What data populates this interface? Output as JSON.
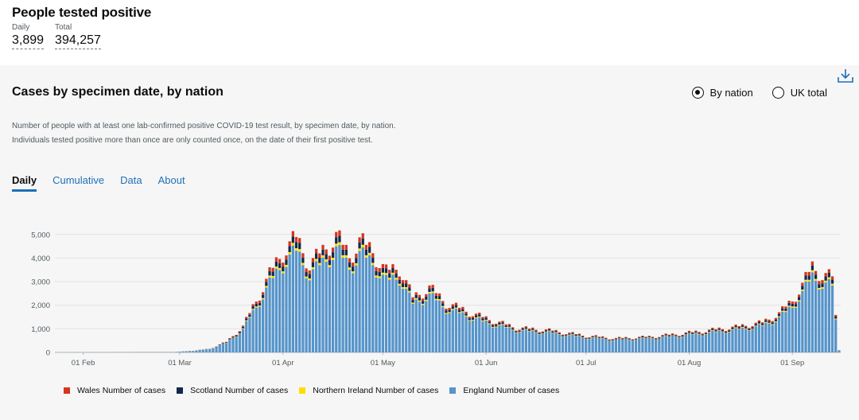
{
  "summary": {
    "title": "People tested positive",
    "daily_label": "Daily",
    "daily_value": "3,899",
    "total_label": "Total",
    "total_value": "394,257"
  },
  "card": {
    "title": "Cases by specimen date, by nation",
    "download_icon": "download-icon",
    "radio_by_nation": "By nation",
    "radio_uk_total": "UK total",
    "description": "Number of people with at least one lab-confirmed positive COVID-19 test result, by specimen date, by nation. Individuals tested positive more than once are only counted once, on the date of their first positive test.",
    "tabs": [
      "Daily",
      "Cumulative",
      "Data",
      "About"
    ]
  },
  "chart_data": {
    "type": "bar",
    "stacked": true,
    "x_start": "2020-01-24",
    "x_ticks": [
      {
        "date": "2020-02-01",
        "label": "01 Feb"
      },
      {
        "date": "2020-03-01",
        "label": "01 Mar"
      },
      {
        "date": "2020-04-01",
        "label": "01 Apr"
      },
      {
        "date": "2020-05-01",
        "label": "01 May"
      },
      {
        "date": "2020-06-01",
        "label": "01 Jun"
      },
      {
        "date": "2020-07-01",
        "label": "01 Jul"
      },
      {
        "date": "2020-08-01",
        "label": "01 Aug"
      },
      {
        "date": "2020-09-01",
        "label": "01 Sep"
      }
    ],
    "y_ticks": [
      {
        "value": 0,
        "label": "0"
      },
      {
        "value": 1000,
        "label": "1,000"
      },
      {
        "value": 2000,
        "label": "2,000"
      },
      {
        "value": 3000,
        "label": "3,000"
      },
      {
        "value": 4000,
        "label": "4,000"
      },
      {
        "value": 5000,
        "label": "5,000"
      }
    ],
    "ylim": [
      0,
      5600
    ],
    "grid": true,
    "legend_position": "bottom",
    "england_anchors": [
      [
        "2020-01-24",
        2
      ],
      [
        "2020-02-28",
        15
      ],
      [
        "2020-03-05",
        60
      ],
      [
        "2020-03-10",
        140
      ],
      [
        "2020-03-15",
        400
      ],
      [
        "2020-03-20",
        1000
      ],
      [
        "2020-03-24",
        2000
      ],
      [
        "2020-03-28",
        3000
      ],
      [
        "2020-04-01",
        3900
      ],
      [
        "2020-04-05",
        4400
      ],
      [
        "2020-04-09",
        3400
      ],
      [
        "2020-04-13",
        3900
      ],
      [
        "2020-04-17",
        4500
      ],
      [
        "2020-04-21",
        3700
      ],
      [
        "2020-04-24",
        4300
      ],
      [
        "2020-04-28",
        3900
      ],
      [
        "2020-05-02",
        3100
      ],
      [
        "2020-05-06",
        3300
      ],
      [
        "2020-05-10",
        2100
      ],
      [
        "2020-05-15",
        2500
      ],
      [
        "2020-05-20",
        1900
      ],
      [
        "2020-05-25",
        1650
      ],
      [
        "2020-05-31",
        1350
      ],
      [
        "2020-06-10",
        950
      ],
      [
        "2020-06-20",
        850
      ],
      [
        "2020-07-01",
        640
      ],
      [
        "2020-07-10",
        540
      ],
      [
        "2020-07-20",
        600
      ],
      [
        "2020-07-28",
        700
      ],
      [
        "2020-08-05",
        820
      ],
      [
        "2020-08-15",
        980
      ],
      [
        "2020-08-23",
        1150
      ],
      [
        "2020-08-28",
        1500
      ],
      [
        "2020-09-01",
        2000
      ],
      [
        "2020-09-04",
        2600
      ],
      [
        "2020-09-07",
        3300
      ],
      [
        "2020-09-10",
        3000
      ],
      [
        "2020-09-13",
        2900
      ],
      [
        "2020-09-14",
        1400
      ],
      [
        "2020-09-15",
        80
      ]
    ],
    "series": [
      {
        "name": "Wales Number of cases",
        "color": "#d4351c",
        "share_of_england": 0.05
      },
      {
        "name": "Scotland Number of cases",
        "color": "#12284c",
        "share_of_england": 0.06
      },
      {
        "name": "Northern Ireland Number of cases",
        "color": "#ffdd00",
        "share_of_england": 0.025
      },
      {
        "name": "England Number of cases",
        "color": "#5694ca",
        "share_of_england": 1
      }
    ]
  }
}
